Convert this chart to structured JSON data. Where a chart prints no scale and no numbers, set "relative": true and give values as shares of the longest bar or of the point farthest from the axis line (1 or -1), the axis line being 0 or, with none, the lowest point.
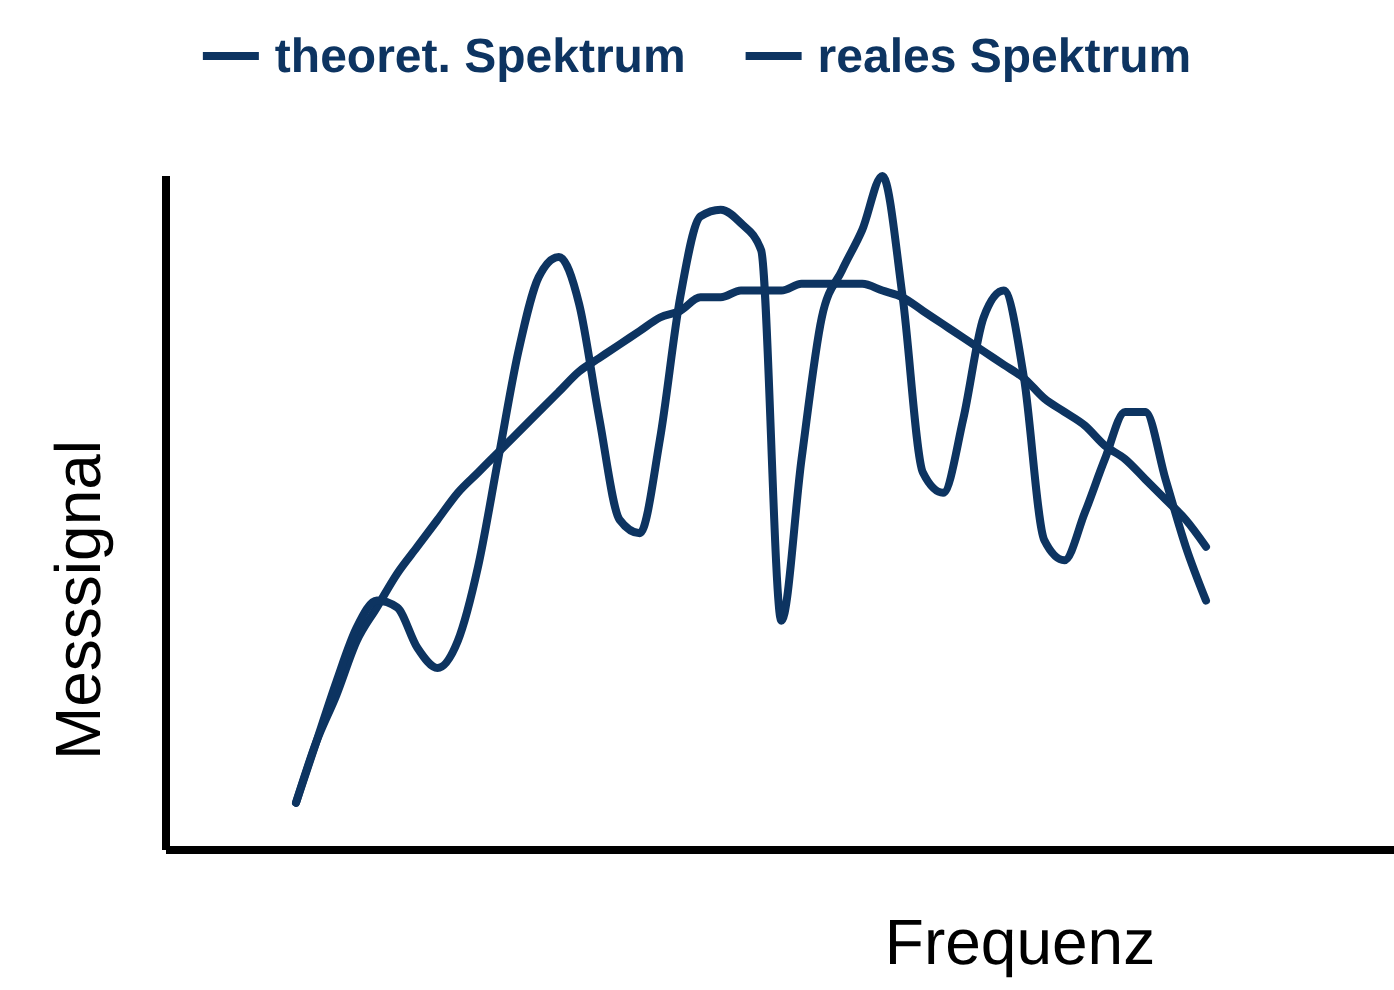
{
  "chart_data": {
    "type": "line",
    "relative": true,
    "xlabel": "Frequenz",
    "ylabel": "Messsignal",
    "legend": "top",
    "categories": [
      null,
      null,
      null,
      null,
      null,
      null,
      null,
      null,
      null,
      null,
      null,
      null,
      null,
      null,
      null,
      null,
      null,
      null,
      null,
      null,
      null,
      null,
      null,
      null,
      null,
      null,
      null,
      null,
      null,
      null,
      null,
      null,
      null,
      null,
      null,
      null,
      null,
      null,
      null,
      null,
      null,
      null,
      null,
      null,
      null,
      null
    ],
    "series": [
      {
        "name": "theoret. Spektrum",
        "color": "#0d3461",
        "values": [
          0.07,
          0.16,
          0.23,
          0.31,
          0.36,
          0.41,
          0.45,
          0.49,
          0.53,
          0.56,
          0.59,
          0.62,
          0.65,
          0.68,
          0.71,
          0.73,
          0.75,
          0.77,
          0.79,
          0.8,
          0.82,
          0.82,
          0.83,
          0.83,
          0.83,
          0.84,
          0.84,
          0.84,
          0.84,
          0.83,
          0.82,
          0.8,
          0.78,
          0.76,
          0.74,
          0.72,
          0.7,
          0.67,
          0.65,
          0.63,
          0.6,
          0.58,
          0.55,
          0.52,
          0.49,
          0.45
        ]
      },
      {
        "name": "reales Spektrum",
        "color": "#0d3461",
        "values": [
          0.07,
          0.16,
          0.25,
          0.33,
          0.37,
          0.36,
          0.3,
          0.27,
          0.31,
          0.42,
          0.58,
          0.74,
          0.85,
          0.88,
          0.81,
          0.64,
          0.49,
          0.47,
          0.61,
          0.82,
          0.94,
          0.95,
          0.93,
          0.89,
          0.34,
          0.58,
          0.79,
          0.86,
          0.92,
          1,
          0.82,
          0.56,
          0.53,
          0.64,
          0.79,
          0.83,
          0.7,
          0.46,
          0.43,
          0.5,
          0.58,
          0.65,
          0.65,
          0.55,
          0.45,
          0.37
        ]
      }
    ]
  }
}
